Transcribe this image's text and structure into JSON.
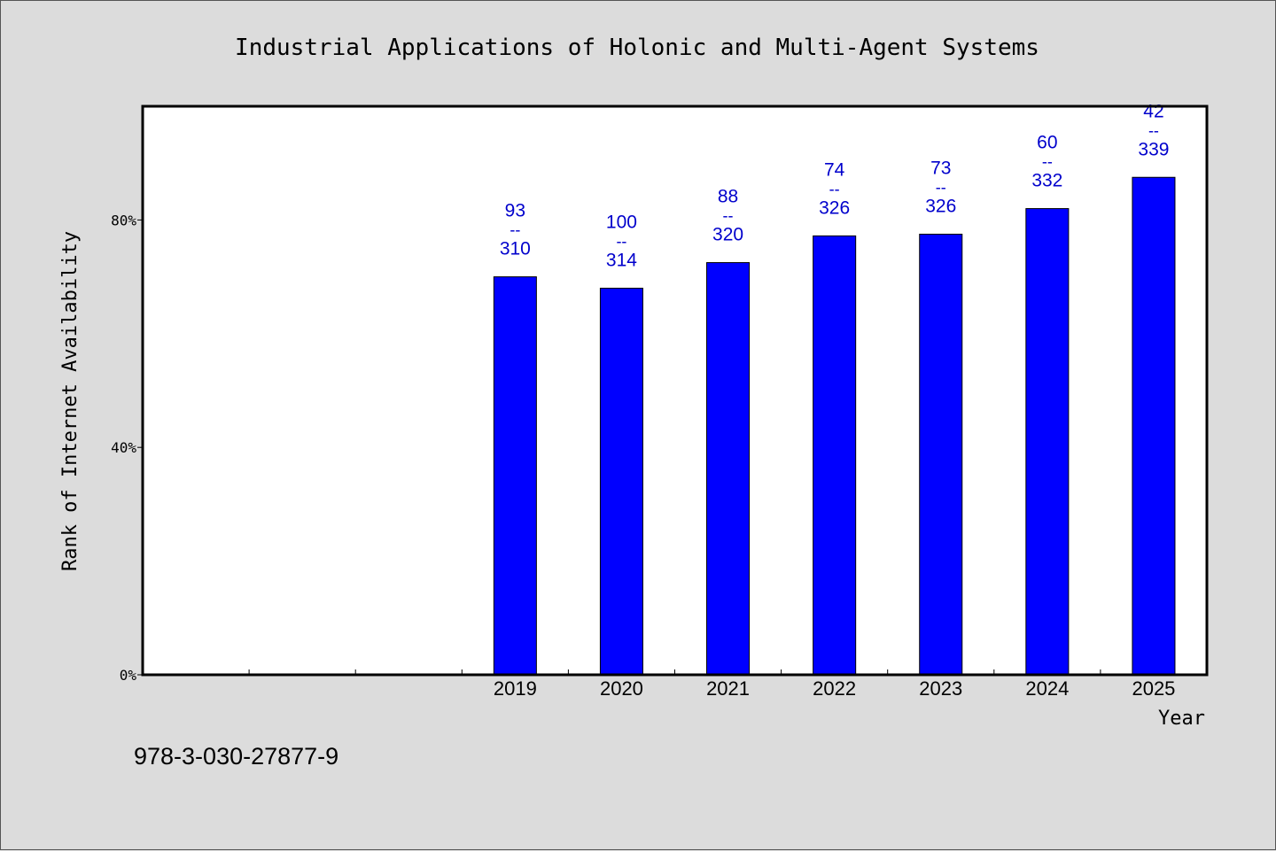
{
  "chart_data": {
    "type": "bar",
    "title": "Industrial Applications of Holonic and Multi-Agent Systems",
    "xlabel": "Year",
    "ylabel": "Rank of Internet Availability",
    "categories": [
      "",
      "",
      "",
      "2019",
      "2020",
      "2021",
      "2022",
      "2023",
      "2024",
      "2025"
    ],
    "values": [
      null,
      null,
      null,
      70,
      68,
      72.5,
      77.2,
      77.5,
      82,
      87.5
    ],
    "data_labels": [
      null,
      null,
      null,
      {
        "top": "93",
        "sep": "--",
        "bottom": "310"
      },
      {
        "top": "100",
        "sep": "--",
        "bottom": "314"
      },
      {
        "top": "88",
        "sep": "--",
        "bottom": "320"
      },
      {
        "top": "74",
        "sep": "--",
        "bottom": "326"
      },
      {
        "top": "73",
        "sep": "--",
        "bottom": "326"
      },
      {
        "top": "60",
        "sep": "--",
        "bottom": "332"
      },
      {
        "top": "42",
        "sep": "--",
        "bottom": "339"
      }
    ],
    "ylim": [
      0,
      100
    ],
    "yticks": [
      0,
      40,
      80
    ],
    "ytick_labels": [
      "0%",
      "40%",
      "80%"
    ],
    "grid": false,
    "colors": {
      "bar": "#0000ff",
      "label": "#0000cc",
      "background": "#dcdcdc",
      "plot_bg": "#ffffff"
    }
  },
  "footer": {
    "isbn": "978-3-030-27877-9"
  }
}
